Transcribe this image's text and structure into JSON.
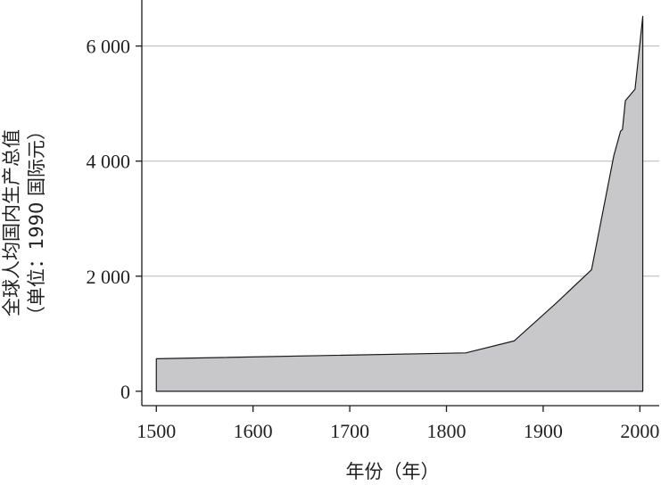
{
  "chart_data": {
    "type": "area",
    "xlabel": "年份（年）",
    "ylabel_line1": "全球人均国内生产总值",
    "ylabel_line2": "（单位：1990 国际元）",
    "xlim": [
      1485,
      2020
    ],
    "ylim": [
      -250,
      6800
    ],
    "x_ticks": [
      1500,
      1600,
      1700,
      1800,
      1900,
      2000
    ],
    "x_tick_labels": [
      "1500",
      "1600",
      "1700",
      "1800",
      "1900",
      "2000"
    ],
    "y_ticks": [
      0,
      2000,
      4000,
      6000
    ],
    "y_tick_labels": [
      "0",
      "2 000",
      "4 000",
      "6 000"
    ],
    "grid": "horizontal",
    "fill_color": "#c8c8cb",
    "line_color": "#1a1a1a",
    "points": [
      {
        "x": 1500,
        "y": 566
      },
      {
        "x": 1820,
        "y": 667
      },
      {
        "x": 1870,
        "y": 875
      },
      {
        "x": 1913,
        "y": 1525
      },
      {
        "x": 1950,
        "y": 2111
      },
      {
        "x": 1973,
        "y": 4091
      },
      {
        "x": 1980,
        "y": 4520
      },
      {
        "x": 1982,
        "y": 4550
      },
      {
        "x": 1985,
        "y": 5050
      },
      {
        "x": 1990,
        "y": 5150
      },
      {
        "x": 1995,
        "y": 5250
      },
      {
        "x": 2000,
        "y": 6040
      },
      {
        "x": 2003,
        "y": 6516
      }
    ]
  }
}
